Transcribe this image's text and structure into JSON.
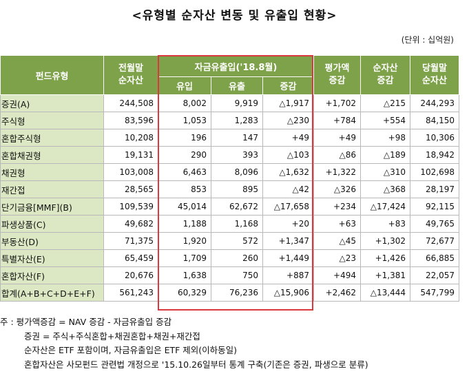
{
  "title": "<유형별 순자산 변동 및 유출입 현황>",
  "unit": "(단위 : 십억원)",
  "header": {
    "fund_type": "펀드유형",
    "prev_month": "전월말\n순자산",
    "flow_group": "자금유출입('18.8월)",
    "inflow": "유입",
    "outflow": "유출",
    "change": "증감",
    "valuation": "평가액\n증감",
    "net_asset_change": "순자산\n증감",
    "current_month": "당월말\n순자산"
  },
  "rows": [
    {
      "name": "증권(A)",
      "prev": "244,508",
      "in": "8,002",
      "out": "9,919",
      "chg": "△1,917",
      "val": "+1,702",
      "nac": "△215",
      "cur": "244,293"
    },
    {
      "name": "주식형",
      "prev": "83,596",
      "in": "1,053",
      "out": "1,283",
      "chg": "△230",
      "val": "+784",
      "nac": "+554",
      "cur": "84,150"
    },
    {
      "name": "혼합주식형",
      "prev": "10,208",
      "in": "196",
      "out": "147",
      "chg": "+49",
      "val": "+49",
      "nac": "+98",
      "cur": "10,306"
    },
    {
      "name": "혼합채권형",
      "prev": "19,131",
      "in": "290",
      "out": "393",
      "chg": "△103",
      "val": "△86",
      "nac": "△189",
      "cur": "18,942"
    },
    {
      "name": "채권형",
      "prev": "103,008",
      "in": "6,463",
      "out": "8,096",
      "chg": "△1,632",
      "val": "+1,322",
      "nac": "△310",
      "cur": "102,698"
    },
    {
      "name": "재간접",
      "prev": "28,565",
      "in": "853",
      "out": "895",
      "chg": "△42",
      "val": "△326",
      "nac": "△368",
      "cur": "28,197"
    },
    {
      "name": "단기금융[MMF](B)",
      "prev": "109,539",
      "in": "45,014",
      "out": "62,672",
      "chg": "△17,658",
      "val": "+234",
      "nac": "△17,424",
      "cur": "92,115"
    },
    {
      "name": "파생상품(C)",
      "prev": "49,682",
      "in": "1,188",
      "out": "1,168",
      "chg": "+20",
      "val": "+63",
      "nac": "+83",
      "cur": "49,765"
    },
    {
      "name": "부동산(D)",
      "prev": "71,375",
      "in": "1,920",
      "out": "572",
      "chg": "+1,347",
      "val": "△45",
      "nac": "+1,302",
      "cur": "72,677"
    },
    {
      "name": "특별자산(E)",
      "prev": "65,459",
      "in": "1,709",
      "out": "260",
      "chg": "+1,449",
      "val": "△23",
      "nac": "+1,426",
      "cur": "66,885"
    },
    {
      "name": "혼합자산(F)",
      "prev": "20,676",
      "in": "1,638",
      "out": "750",
      "chg": "+887",
      "val": "+494",
      "nac": "+1,381",
      "cur": "22,057"
    },
    {
      "name": "합계(A+B+C+D+E+F)",
      "prev": "561,243",
      "in": "60,329",
      "out": "76,236",
      "chg": "△15,906",
      "val": "+2,462",
      "nac": "△13,444",
      "cur": "547,799"
    }
  ],
  "notes": {
    "line1": "주 : 평가액증감 = NAV 증감 - 자금유출입 증감",
    "line2": "증권 = 주식+주식혼합+채권혼합+채권+재간접",
    "line3": "순자산은 ETF 포함이며, 자금유출입은 ETF 제외(이하동일)",
    "line4": "혼합자산은 사모펀드 관련법 개정으로 '15.10.26일부터 통계 구축(기존은 증권, 파생으로 분류)"
  }
}
